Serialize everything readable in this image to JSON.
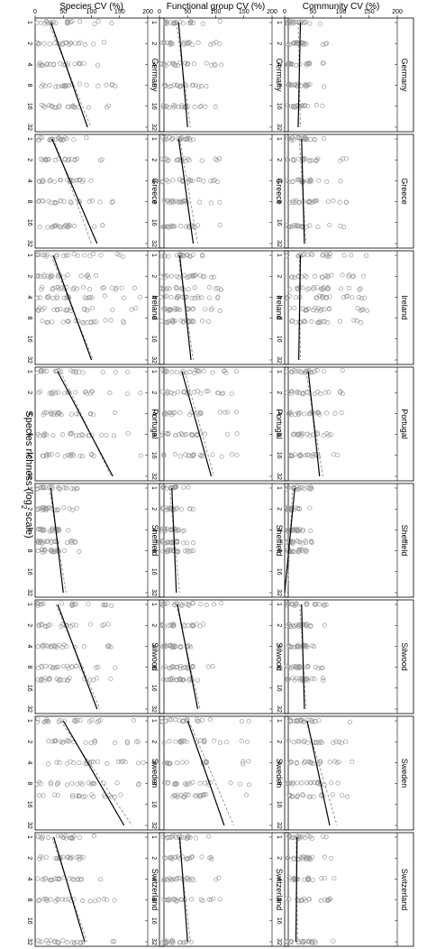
{
  "figure": {
    "xlabel": "Species richness (log",
    "xlabel_sub": "2",
    "xlabel_end": " scale)",
    "row_labels": [
      "Species CV (%)",
      "Functional group CV (%)",
      "Community CV (%)"
    ],
    "sites": [
      "Germany",
      "Greece",
      "Ireland",
      "Portugal",
      "Sheffield",
      "Silwood",
      "Sweden",
      "Switzerland"
    ],
    "x_ticks": [
      "1",
      "2",
      "4",
      "8",
      "16",
      "32"
    ],
    "y_ticks": [
      "0",
      "50",
      "100",
      "150",
      "200"
    ]
  },
  "chart_data": {
    "type": "scatter",
    "x_scale": "log2",
    "xlim": [
      1,
      32
    ],
    "ylim": [
      0,
      200
    ],
    "points_color": "#9a9a9a",
    "fit_color": "#000000",
    "guide_color": "#9a9a9a",
    "panels": {
      "species": [
        {
          "site": "Germany",
          "levels": [
            1,
            2,
            4,
            8,
            16
          ],
          "fit": [
            [
              1,
              28
            ],
            [
              32,
              93
            ]
          ],
          "guide": [
            [
              1,
              24
            ],
            [
              32,
              99
            ]
          ],
          "ymax": 145
        },
        {
          "site": "Greece",
          "levels": [
            1,
            2,
            4,
            8,
            18
          ],
          "fit": [
            [
              1,
              30
            ],
            [
              32,
              110
            ]
          ],
          "guide": [
            [
              1,
              33
            ],
            [
              32,
              100
            ]
          ],
          "ymax": 145
        },
        {
          "site": "Ireland",
          "levels": [
            1,
            2,
            3,
            4,
            6,
            9
          ],
          "fit": [
            [
              1,
              32
            ],
            [
              32,
              100
            ]
          ],
          "guide": [
            [
              1,
              28
            ],
            [
              32,
              103
            ]
          ],
          "ymax": 190
        },
        {
          "site": "Portugal",
          "levels": [
            1,
            2,
            4,
            8,
            16
          ],
          "fit": [
            [
              1,
              40
            ],
            [
              32,
              138
            ]
          ],
          "guide": [
            [
              1,
              45
            ],
            [
              32,
              135
            ]
          ],
          "ymax": 190
        },
        {
          "site": "Sheffield",
          "levels": [
            1,
            2,
            4,
            6,
            8
          ],
          "fit": [
            [
              1,
              28
            ],
            [
              32,
              50
            ]
          ],
          "guide": [
            [
              1,
              25
            ],
            [
              32,
              55
            ]
          ],
          "ymax": 80
        },
        {
          "site": "Silwood",
          "levels": [
            1,
            2,
            4,
            8,
            12
          ],
          "fit": [
            [
              1,
              40
            ],
            [
              32,
              110
            ]
          ],
          "guide": [
            [
              1,
              37
            ],
            [
              32,
              115
            ]
          ],
          "ymax": 145
        },
        {
          "site": "Sweden",
          "levels": [
            1,
            2,
            4,
            8,
            12
          ],
          "fit": [
            [
              1,
              50
            ],
            [
              32,
              158
            ]
          ],
          "guide": [
            [
              1,
              45
            ],
            [
              32,
              172
            ]
          ],
          "ymax": 195
        },
        {
          "site": "Switzerland",
          "levels": [
            1,
            2,
            4,
            8,
            60
          ],
          "fit": [
            [
              1,
              33
            ],
            [
              32,
              88
            ]
          ],
          "guide": [
            [
              1,
              30
            ],
            [
              32,
              92
            ]
          ],
          "ymax": 150
        }
      ],
      "functional_group": [
        {
          "site": "Germany",
          "levels": [
            1,
            2,
            4,
            8,
            16
          ],
          "fit": [
            [
              1,
              34
            ],
            [
              32,
              50
            ]
          ],
          "guide": [
            [
              1,
              30
            ],
            [
              32,
              55
            ]
          ],
          "ymax": 110
        },
        {
          "site": "Greece",
          "levels": [
            1,
            2,
            4,
            8,
            18
          ],
          "fit": [
            [
              1,
              34
            ],
            [
              32,
              60
            ]
          ],
          "guide": [
            [
              1,
              36
            ],
            [
              32,
              68
            ]
          ],
          "ymax": 110
        },
        {
          "site": "Ireland",
          "levels": [
            1,
            2,
            3,
            4,
            6,
            9
          ],
          "fit": [
            [
              1,
              36
            ],
            [
              32,
              56
            ]
          ],
          "guide": [
            [
              1,
              34
            ],
            [
              32,
              60
            ]
          ],
          "ymax": 110
        },
        {
          "site": "Portugal",
          "levels": [
            1,
            2,
            4,
            8,
            16
          ],
          "fit": [
            [
              1,
              40
            ],
            [
              32,
              92
            ]
          ],
          "guide": [
            [
              1,
              45
            ],
            [
              32,
              97
            ]
          ],
          "ymax": 140
        },
        {
          "site": "Sheffield",
          "levels": [
            1,
            2,
            4,
            6,
            8
          ],
          "fit": [
            [
              1,
              22
            ],
            [
              32,
              30
            ]
          ],
          "guide": [
            [
              1,
              18
            ],
            [
              32,
              36
            ]
          ],
          "ymax": 60
        },
        {
          "site": "Silwood",
          "levels": [
            1,
            2,
            4,
            8,
            12
          ],
          "fit": [
            [
              1,
              32
            ],
            [
              32,
              68
            ]
          ],
          "guide": [
            [
              1,
              30
            ],
            [
              32,
              72
            ]
          ],
          "ymax": 110
        },
        {
          "site": "Sweden",
          "levels": [
            1,
            2,
            4,
            8,
            12
          ],
          "fit": [
            [
              1,
              50
            ],
            [
              32,
              115
            ]
          ],
          "guide": [
            [
              1,
              52
            ],
            [
              32,
              132
            ]
          ],
          "ymax": 160
        },
        {
          "site": "Switzerland",
          "levels": [
            1,
            2,
            4,
            8,
            60
          ],
          "fit": [
            [
              1,
              36
            ],
            [
              32,
              50
            ]
          ],
          "guide": [
            [
              1,
              34
            ],
            [
              32,
              55
            ]
          ],
          "ymax": 110
        }
      ],
      "community": [
        {
          "site": "Germany",
          "levels": [
            1,
            2,
            4,
            8,
            16
          ],
          "fit": [
            [
              1,
              28
            ],
            [
              32,
              24
            ]
          ],
          "guide": [
            [
              1,
              24
            ],
            [
              32,
              28
            ]
          ],
          "ymax": 75
        },
        {
          "site": "Greece",
          "levels": [
            1,
            2,
            4,
            8,
            18
          ],
          "fit": [
            [
              1,
              30
            ],
            [
              32,
              35
            ]
          ],
          "guide": [
            [
              1,
              26
            ],
            [
              32,
              38
            ]
          ],
          "ymax": 110
        },
        {
          "site": "Ireland",
          "levels": [
            1,
            2,
            3,
            4,
            6,
            9
          ],
          "fit": [
            [
              1,
              28
            ],
            [
              32,
              25
            ]
          ],
          "guide": [
            [
              1,
              26
            ],
            [
              32,
              28
            ]
          ],
          "ymax": 150
        },
        {
          "site": "Portugal",
          "levels": [
            1,
            2,
            4,
            8,
            16
          ],
          "fit": [
            [
              1,
              42
            ],
            [
              32,
              62
            ]
          ],
          "guide": [
            [
              1,
              38
            ],
            [
              32,
              68
            ]
          ],
          "ymax": 110
        },
        {
          "site": "Sheffield",
          "levels": [
            1,
            2,
            4,
            6,
            8
          ],
          "fit": [
            [
              1,
              18
            ],
            [
              32,
              0
            ]
          ],
          "guide": [
            [
              1,
              14
            ],
            [
              32,
              5
            ]
          ],
          "ymax": 50
        },
        {
          "site": "Silwood",
          "levels": [
            1,
            2,
            4,
            8,
            12
          ],
          "fit": [
            [
              1,
              30
            ],
            [
              32,
              35
            ]
          ],
          "guide": [
            [
              1,
              27
            ],
            [
              32,
              38
            ]
          ],
          "ymax": 75
        },
        {
          "site": "Sweden",
          "levels": [
            1,
            2,
            4,
            8,
            12
          ],
          "fit": [
            [
              1,
              40
            ],
            [
              32,
              80
            ]
          ],
          "guide": [
            [
              1,
              38
            ],
            [
              32,
              93
            ]
          ],
          "ymax": 120
        },
        {
          "site": "Switzerland",
          "levels": [
            1,
            2,
            4,
            8,
            60
          ],
          "fit": [
            [
              1,
              22
            ],
            [
              32,
              20
            ]
          ],
          "guide": [
            [
              1,
              20
            ],
            [
              32,
              23
            ]
          ],
          "ymax": 90
        }
      ]
    }
  }
}
